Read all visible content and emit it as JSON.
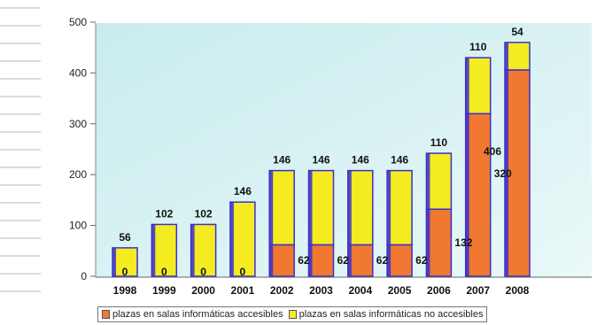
{
  "chart_data": {
    "type": "bar",
    "stacked": true,
    "categories": [
      "1998",
      "1999",
      "2000",
      "2001",
      "2002",
      "2003",
      "2004",
      "2005",
      "2006",
      "2007",
      "2008"
    ],
    "series": [
      {
        "name": "plazas en salas informáticas accesibles",
        "values": [
          0,
          0,
          0,
          0,
          62,
          62,
          62,
          62,
          132,
          320,
          406
        ],
        "labels": [
          "0",
          "0",
          "0",
          "0",
          "62",
          "62",
          "62",
          "62",
          "132",
          "320",
          "406"
        ],
        "color": "#f07830"
      },
      {
        "name": "plazas en salas informáticas no accesibles",
        "values": [
          56,
          102,
          102,
          146,
          146,
          146,
          146,
          146,
          110,
          110,
          54
        ],
        "labels": [
          "56",
          "102",
          "102",
          "146",
          "146",
          "146",
          "146",
          "146",
          "110",
          "110",
          "54"
        ],
        "color": "#f4ec20"
      }
    ],
    "y_ticks": [
      "0",
      "100",
      "200",
      "300",
      "400",
      "500"
    ],
    "ylim": [
      0,
      500
    ],
    "grid": false,
    "bar_edge_color": "#3a2fd0",
    "plot_background": [
      "#c8ecee",
      "#eaf8f8"
    ],
    "legend_position": "bottom"
  }
}
